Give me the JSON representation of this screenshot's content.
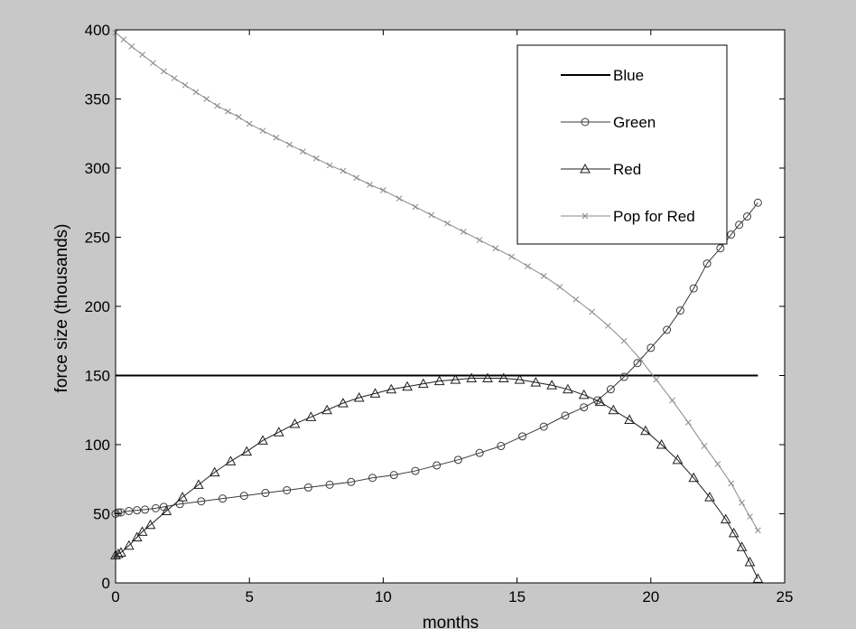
{
  "chart_data": {
    "type": "line",
    "title": "",
    "xlabel": "months",
    "ylabel": "force size (thousands)",
    "xlim": [
      0,
      25
    ],
    "ylim": [
      0,
      400
    ],
    "xticks": [
      "0",
      "5",
      "10",
      "15",
      "20",
      "25"
    ],
    "yticks": [
      "0",
      "50",
      "100",
      "150",
      "200",
      "250",
      "300",
      "350",
      "400"
    ],
    "grid": false,
    "legend_position": "top-right",
    "colors": {
      "figure_background": "#c8c8c8",
      "axes_background": "#ffffff",
      "blue_line": "#000000",
      "green_line": "#3a3a3a",
      "red_line": "#1e1e1e",
      "pop_line": "#8a8a8a"
    },
    "series": [
      {
        "name": "Blue",
        "marker": "none",
        "x": [
          0,
          24
        ],
        "y": [
          150,
          150
        ]
      },
      {
        "name": "Green",
        "marker": "circle",
        "x": [
          0,
          0.1,
          0.2,
          0.5,
          0.8,
          1.1,
          1.5,
          1.8,
          2.4,
          3.2,
          4.0,
          4.8,
          5.6,
          6.4,
          7.2,
          8.0,
          8.8,
          9.6,
          10.4,
          11.2,
          12.0,
          12.8,
          13.6,
          14.4,
          15.2,
          16.0,
          16.8,
          17.5,
          18.0,
          18.5,
          19.0,
          19.5,
          20.0,
          20.6,
          21.1,
          21.6,
          22.1,
          22.6,
          23.0,
          23.3,
          23.6,
          24.0
        ],
        "y": [
          50,
          51,
          51,
          52,
          52.5,
          53,
          54,
          55,
          57,
          59,
          61,
          63,
          65,
          67,
          69,
          71,
          73,
          76,
          78,
          81,
          85,
          89,
          94,
          99,
          106,
          113,
          121,
          127,
          132,
          140,
          149,
          159,
          170,
          183,
          197,
          213,
          231,
          242,
          252,
          259,
          265,
          275
        ]
      },
      {
        "name": "Red",
        "marker": "triangle",
        "x": [
          0,
          0.1,
          0.2,
          0.5,
          0.8,
          1.0,
          1.3,
          1.9,
          2.5,
          3.1,
          3.7,
          4.3,
          4.9,
          5.5,
          6.1,
          6.7,
          7.3,
          7.9,
          8.5,
          9.1,
          9.7,
          10.3,
          10.9,
          11.5,
          12.1,
          12.7,
          13.3,
          13.9,
          14.5,
          15.1,
          15.7,
          16.3,
          16.9,
          17.5,
          18.1,
          18.6,
          19.2,
          19.8,
          20.4,
          21.0,
          21.6,
          22.2,
          22.8,
          23.1,
          23.4,
          23.7,
          24.0
        ],
        "y": [
          20,
          21,
          22,
          27,
          33,
          37,
          42,
          52,
          62,
          71,
          80,
          88,
          95,
          103,
          109,
          115,
          120,
          125,
          130,
          134,
          137,
          140,
          142,
          144,
          146,
          147,
          148,
          148,
          148,
          147,
          145,
          143,
          140,
          136,
          131,
          125,
          118,
          110,
          100,
          89,
          76,
          62,
          46,
          36,
          26,
          15,
          3
        ]
      },
      {
        "name": "Pop for Red",
        "marker": "x",
        "x": [
          0,
          0.3,
          0.6,
          1.0,
          1.4,
          1.8,
          2.2,
          2.6,
          3.0,
          3.4,
          3.8,
          4.2,
          4.6,
          5.0,
          5.5,
          6.0,
          6.5,
          7.0,
          7.5,
          8.0,
          8.5,
          9.0,
          9.5,
          10.0,
          10.6,
          11.2,
          11.8,
          12.4,
          13.0,
          13.6,
          14.2,
          14.8,
          15.4,
          16.0,
          16.6,
          17.2,
          17.8,
          18.4,
          19.0,
          19.6,
          20.2,
          20.8,
          21.4,
          22.0,
          22.5,
          23.0,
          23.4,
          23.7,
          24.0
        ],
        "y": [
          398,
          393,
          388,
          382,
          376,
          370,
          365,
          360,
          355,
          350,
          345,
          341,
          337,
          332,
          327,
          322,
          317,
          312,
          307,
          302,
          298,
          293,
          288,
          284,
          278,
          272,
          266,
          260,
          254,
          248,
          242,
          236,
          229,
          222,
          214,
          205,
          196,
          186,
          175,
          162,
          147,
          132,
          116,
          99,
          86,
          72,
          58,
          48,
          38
        ]
      }
    ]
  }
}
